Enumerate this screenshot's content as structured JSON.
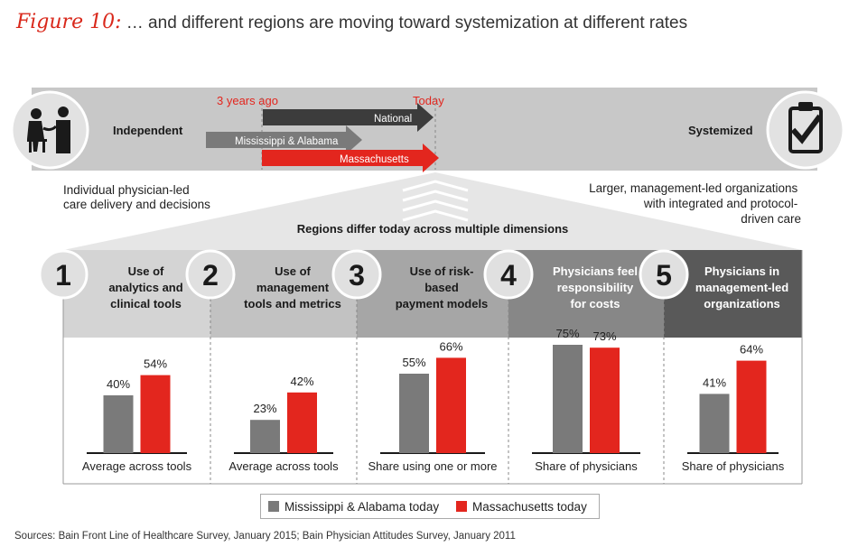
{
  "figure": {
    "label": "Figure 10:",
    "title": "… and different regions are moving toward systemization at different rates"
  },
  "colors": {
    "gray": "#7a7a7a",
    "red": "#e3261e",
    "band": "#c8c8c8",
    "header_text": "#ffffff"
  },
  "spectrum": {
    "left_label": "Independent",
    "right_label": "Systemized",
    "left_icon": "doctor-patient-icon",
    "right_icon": "clipboard-check-icon",
    "time_start": "3 years ago",
    "time_end": "Today",
    "arrows": [
      "National",
      "Mississippi & Alabama",
      "Massachusetts"
    ],
    "left_desc": [
      "Individual physician-led",
      "care delivery and decisions"
    ],
    "right_desc": [
      "Larger, management-led organizations",
      "with integrated and protocol-",
      "driven care"
    ]
  },
  "subheading": "Regions differ today across multiple dimensions",
  "chart_data": [
    {
      "type": "bar",
      "number": "1",
      "title": [
        "Use of",
        "analytics and",
        "clinical tools"
      ],
      "header_color": "#d4d4d4",
      "categories": [
        "Mississippi & Alabama today",
        "Massachusetts today"
      ],
      "values": [
        40,
        54
      ],
      "value_labels": [
        "40%",
        "54%"
      ],
      "xlabel": "Average across tools",
      "unit": "%"
    },
    {
      "type": "bar",
      "number": "2",
      "title": [
        "Use of",
        "management",
        "tools and metrics"
      ],
      "header_color": "#c2c2c2",
      "categories": [
        "Mississippi & Alabama today",
        "Massachusetts today"
      ],
      "values": [
        23,
        42
      ],
      "value_labels": [
        "23%",
        "42%"
      ],
      "xlabel": "Average across tools",
      "unit": "%"
    },
    {
      "type": "bar",
      "number": "3",
      "title": [
        "Use of risk-",
        "based",
        "payment models"
      ],
      "header_color": "#a6a6a6",
      "categories": [
        "Mississippi & Alabama today",
        "Massachusetts today"
      ],
      "values": [
        55,
        66
      ],
      "value_labels": [
        "55%",
        "66%"
      ],
      "xlabel": "Share using one or more",
      "unit": "%"
    },
    {
      "type": "bar",
      "number": "4",
      "title": [
        "Physicians feel",
        "responsibility",
        "for costs"
      ],
      "header_color": "#878787",
      "categories": [
        "Mississippi & Alabama today",
        "Massachusetts today"
      ],
      "values": [
        75,
        73
      ],
      "value_labels": [
        "75%",
        "73%"
      ],
      "xlabel": "Share of physicians",
      "unit": "%"
    },
    {
      "type": "bar",
      "number": "5",
      "title": [
        "Physicians in",
        "management-led",
        "organizations"
      ],
      "header_color": "#595959",
      "categories": [
        "Mississippi & Alabama today",
        "Massachusetts today"
      ],
      "values": [
        41,
        64
      ],
      "value_labels": [
        "41%",
        "64%"
      ],
      "xlabel": "Share of physicians",
      "unit": "%"
    }
  ],
  "legend": [
    {
      "label": "Mississippi & Alabama today",
      "color": "#7a7a7a"
    },
    {
      "label": "Massachusetts today",
      "color": "#e3261e"
    }
  ],
  "sources": "Sources: Bain Front Line of Healthcare Survey, January 2015; Bain Physician Attitudes Survey, January 2011"
}
